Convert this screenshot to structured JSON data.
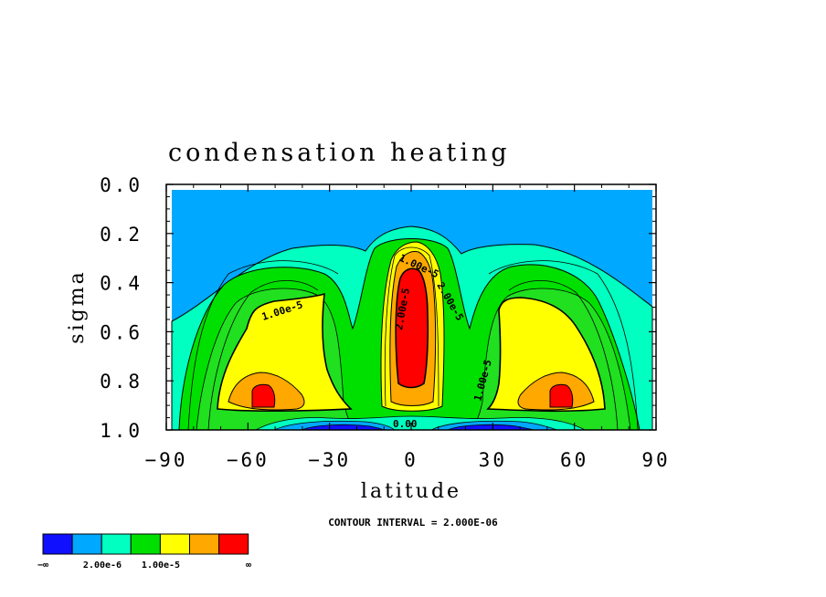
{
  "chart_data": {
    "type": "heatmap",
    "title": "condensation heating",
    "xlabel": "latitude",
    "ylabel": "sigma",
    "xlim": [
      -90,
      90
    ],
    "ylim": [
      0.0,
      1.0
    ],
    "y_inverted": true,
    "x_ticks": [
      "−90",
      "−60",
      "−30",
      "0",
      "30",
      "60",
      "90"
    ],
    "x_tick_values": [
      -90,
      -60,
      -30,
      0,
      30,
      60,
      90
    ],
    "y_ticks": [
      "0.0",
      "0.2",
      "0.4",
      "0.6",
      "0.8",
      "1.0"
    ],
    "y_tick_values": [
      0.0,
      0.2,
      0.4,
      0.6,
      0.8,
      1.0
    ],
    "contour_interval_text": "CONTOUR INTERVAL = 2.000E-06",
    "contour_labels": [
      "1.00e-5",
      "2.00e-5",
      "1.00e-5",
      "1.00e-5",
      "2.00e-5",
      "0.00"
    ],
    "colorbar": {
      "colors": [
        "#1010ff",
        "#00a8ff",
        "#00ffc0",
        "#00e000",
        "#ffff00",
        "#ffa800",
        "#ff0000"
      ],
      "labels": [
        "−∞",
        "2.00e-6",
        "1.00e-5",
        "∞"
      ],
      "levels": [
        0.0,
        2e-06,
        4e-06,
        6e-06,
        1e-05,
        1.4e-05,
        1.8e-05
      ]
    },
    "features": [
      {
        "name": "tropical maximum",
        "lat": 0,
        "sigma_top": 0.3,
        "sigma_bottom": 0.9,
        "max_level": "red"
      },
      {
        "name": "southern midlatitude maximum",
        "lat": -53,
        "sigma": 0.88,
        "max_level": "red"
      },
      {
        "name": "northern midlatitude maximum",
        "lat": 53,
        "sigma": 0.88,
        "max_level": "red"
      },
      {
        "name": "near-surface minimum",
        "sigma": 0.99,
        "max_level": "blue"
      }
    ]
  }
}
